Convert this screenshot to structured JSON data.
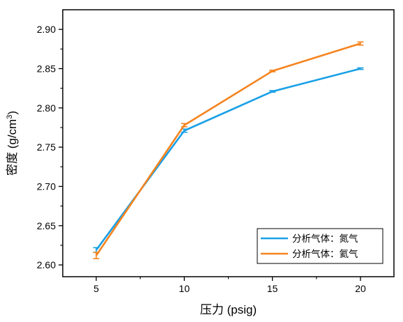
{
  "chart_data": {
    "type": "line",
    "x": [
      5,
      10,
      15,
      20
    ],
    "xlim": [
      3.1,
      21.9
    ],
    "ylim": [
      2.585,
      2.925
    ],
    "xticks": [
      5,
      10,
      15,
      20
    ],
    "xtick_labels": [
      "5",
      "10",
      "15",
      "20"
    ],
    "yticks": [
      2.6,
      2.65,
      2.7,
      2.75,
      2.8,
      2.85,
      2.9
    ],
    "ytick_labels": [
      "2.60",
      "2.65",
      "2.70",
      "2.75",
      "2.80",
      "2.85",
      "2.90"
    ],
    "xlabel": "压力 (psig)",
    "ylabel_main": "密度 (g/cm",
    "ylabel_sup": "3",
    "ylabel_close": ")",
    "grid": false,
    "legend_position": "bottom-right",
    "series": [
      {
        "name": "分析气体：氮气",
        "color": "#1aa0e6",
        "values": [
          2.619,
          2.771,
          2.821,
          2.85
        ],
        "errors": [
          0.003,
          0.002,
          0.001,
          0.001
        ]
      },
      {
        "name": "分析气体：氦气",
        "color": "#f5841f",
        "values": [
          2.612,
          2.778,
          2.847,
          2.882
        ],
        "errors": [
          0.004,
          0.002,
          0.001,
          0.002
        ]
      }
    ]
  }
}
